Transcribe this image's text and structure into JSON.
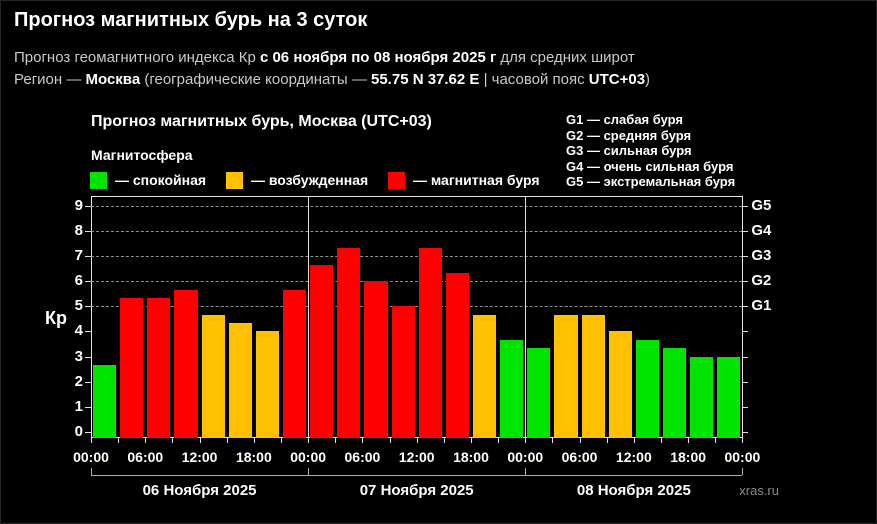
{
  "header": {
    "title": "Прогноз магнитных бурь на 3 суток",
    "line2": {
      "pre": "Прогноз геомагнитного индекса Кр ",
      "bold": "с 06 ноября по 08 ноября 2025 г",
      "post": " для средних широт"
    },
    "line3": {
      "pre": "Регион — ",
      "city": "Москва",
      "mid": " (географические координаты — ",
      "coords": "55.75 N 37.62 E",
      "mid2": " | часовой пояс ",
      "tz": "UTC+03",
      "post": ")"
    }
  },
  "chart": {
    "title": "Прогноз магнитных бурь, Москва (UTC+03)",
    "legend_title": "Магнитосфера",
    "legend": [
      {
        "label": "— спокойная",
        "color": "#00e400"
      },
      {
        "label": "— возбужденная",
        "color": "#ffc000"
      },
      {
        "label": "— магнитная буря",
        "color": "#fe0000"
      }
    ],
    "g_legend": [
      "G1 — слабая буря",
      "G2 — средняя буря",
      "G3 — сильная буря",
      "G4 — очень сильная буря",
      "G5 — экстремальная буря"
    ],
    "y_axis_label": "Кр",
    "watermark": "xras.ru"
  },
  "chart_data": {
    "type": "bar",
    "title": "Прогноз магнитных бурь, Москва (UTC+03)",
    "ylabel": "Кр",
    "ylim": [
      0,
      9.4
    ],
    "y_ticks": [
      0,
      1,
      2,
      3,
      4,
      5,
      6,
      7,
      8,
      9
    ],
    "gridlines_at": [
      5,
      6,
      7,
      8,
      9
    ],
    "g_labels": [
      "G1",
      "G2",
      "G3",
      "G4",
      "G5"
    ],
    "g_label_kp_levels": [
      5,
      6,
      7,
      8,
      9
    ],
    "interval_hours": 3,
    "x_tick_labels": [
      "00:00",
      "06:00",
      "12:00",
      "18:00",
      "00:00",
      "06:00",
      "12:00",
      "18:00",
      "00:00",
      "06:00",
      "12:00",
      "18:00",
      "00:00"
    ],
    "days": [
      {
        "date": "06 Ноября 2025",
        "values": [
          2.67,
          5.33,
          5.33,
          5.67,
          4.67,
          4.33,
          4.0,
          5.67
        ]
      },
      {
        "date": "07 Ноября 2025",
        "values": [
          6.67,
          7.33,
          6.0,
          5.0,
          7.33,
          6.33,
          4.67,
          3.67
        ]
      },
      {
        "date": "08 Ноября 2025",
        "values": [
          3.33,
          4.67,
          4.67,
          4.0,
          3.67,
          3.33,
          3.0,
          3.0
        ]
      }
    ],
    "color_rules": {
      "quiet_below": 4,
      "excited_below": 5
    },
    "colors": {
      "quiet": "#00e400",
      "excited": "#ffc000",
      "storm": "#fe0000"
    },
    "legend_position": "top"
  }
}
